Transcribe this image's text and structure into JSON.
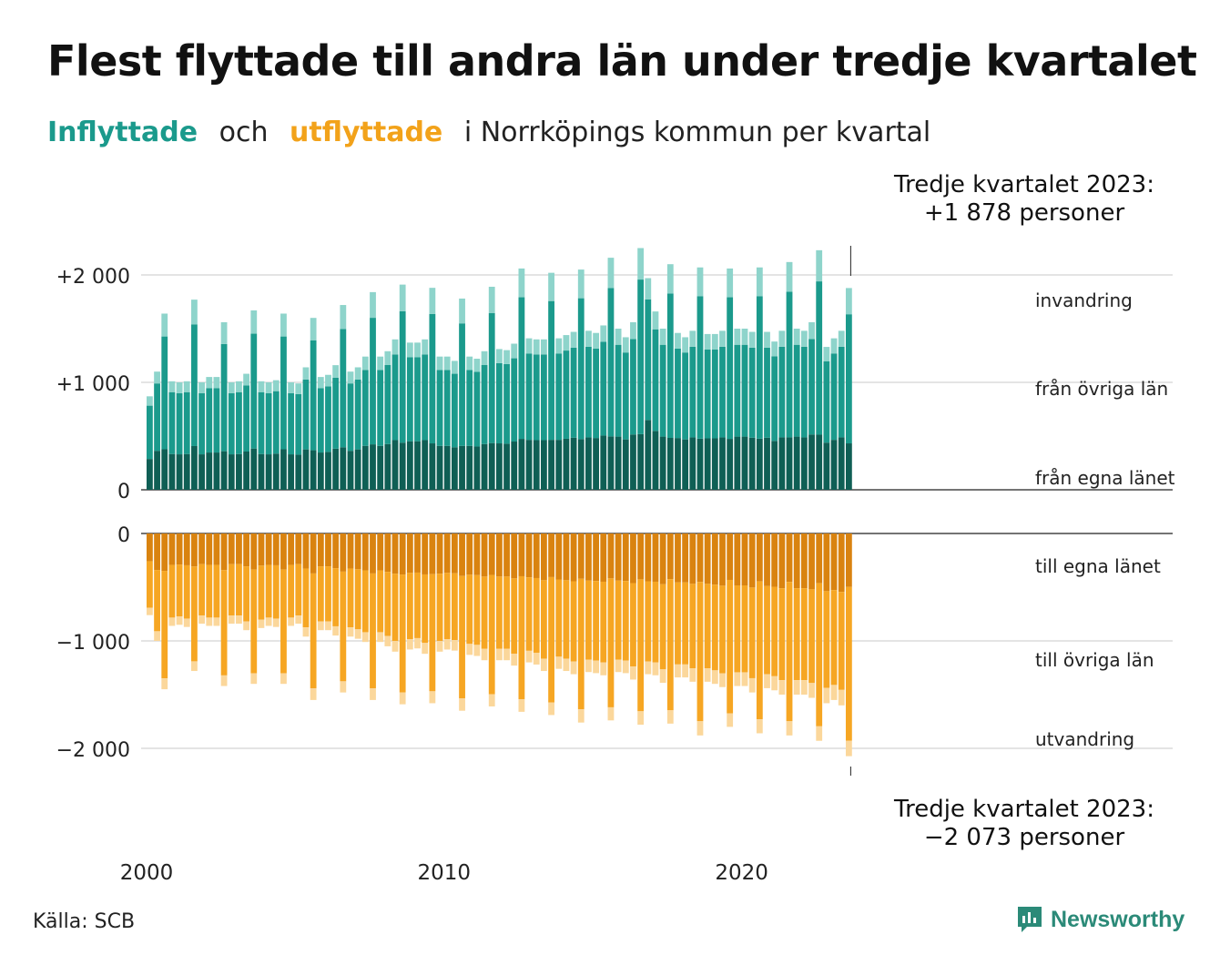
{
  "title": "Flest flyttade till andra län under tredje kvartalet",
  "subtitle": {
    "in_word": "Inflyttade",
    "and": "och",
    "out_word": "utflyttade",
    "rest": "i Norrköpings kommun per kvartal"
  },
  "annotations": {
    "top_line1": "Tredje kvartalet 2023:",
    "top_line2": "+1 878 personer",
    "bottom_line1": "Tredje kvartalet 2023:",
    "bottom_line2": "−2 073 personer"
  },
  "source": "Källa: SCB",
  "logo_text": "Newsworthy",
  "colors": {
    "in_own": "#0f5f55",
    "in_other": "#1b9a8c",
    "in_immigration": "#8ed4cb",
    "out_own": "#d98310",
    "out_other": "#f6a623",
    "out_emigration": "#fbd79b",
    "title_in": "#1b9a8c",
    "title_out": "#f2a21a"
  },
  "chart_data": {
    "type": "bar",
    "x_start": "2000 Q1",
    "x_end": "2023 Q3",
    "x_tick_labels": [
      "2000",
      "2010",
      "2020"
    ],
    "in_ticks": [
      {
        "value": 0,
        "label": "0"
      },
      {
        "value": 1000,
        "label": "+1 000"
      },
      {
        "value": 2000,
        "label": "+2 000"
      }
    ],
    "out_ticks": [
      {
        "value": 0,
        "label": "0"
      },
      {
        "value": -1000,
        "label": "−1 000"
      },
      {
        "value": -2000,
        "label": "−2 000"
      }
    ],
    "in_ylim": [
      0,
      2000
    ],
    "out_ylim": [
      -2000,
      0
    ],
    "in_series_labels": [
      "från egna länet",
      "från övriga län",
      "invandring"
    ],
    "out_series_labels": [
      "till egna länet",
      "till övriga län",
      "utvandring"
    ],
    "inflow_totals": [
      870,
      1100,
      1640,
      1010,
      1000,
      1010,
      1770,
      1000,
      1050,
      1050,
      1560,
      1000,
      1010,
      1080,
      1670,
      1010,
      1000,
      1020,
      1640,
      1000,
      990,
      1140,
      1600,
      1050,
      1070,
      1160,
      1720,
      1100,
      1140,
      1240,
      1840,
      1240,
      1290,
      1400,
      1910,
      1370,
      1370,
      1400,
      1880,
      1240,
      1240,
      1200,
      1780,
      1240,
      1220,
      1290,
      1890,
      1310,
      1300,
      1360,
      2060,
      1410,
      1400,
      1400,
      2020,
      1410,
      1440,
      1470,
      2050,
      1480,
      1460,
      1530,
      2160,
      1500,
      1420,
      1560,
      2250,
      1970,
      1660,
      1500,
      2100,
      1460,
      1420,
      1480,
      2070,
      1450,
      1450,
      1480,
      2060,
      1500,
      1500,
      1470,
      2070,
      1470,
      1380,
      1480,
      2120,
      1500,
      1480,
      1560,
      2230,
      1330,
      1410,
      1480,
      1878
    ],
    "outflow_totals": [
      -760,
      -1000,
      -1450,
      -860,
      -850,
      -870,
      -1280,
      -840,
      -860,
      -860,
      -1420,
      -840,
      -840,
      -900,
      -1400,
      -880,
      -860,
      -870,
      -1400,
      -860,
      -840,
      -960,
      -1550,
      -900,
      -900,
      -950,
      -1480,
      -960,
      -980,
      -1010,
      -1550,
      -1010,
      -1050,
      -1100,
      -1590,
      -1080,
      -1070,
      -1120,
      -1580,
      -1100,
      -1080,
      -1090,
      -1650,
      -1130,
      -1140,
      -1180,
      -1610,
      -1180,
      -1180,
      -1230,
      -1660,
      -1200,
      -1220,
      -1280,
      -1690,
      -1260,
      -1280,
      -1310,
      -1760,
      -1290,
      -1300,
      -1320,
      -1740,
      -1290,
      -1300,
      -1360,
      -1780,
      -1310,
      -1320,
      -1390,
      -1770,
      -1340,
      -1340,
      -1380,
      -1880,
      -1380,
      -1400,
      -1430,
      -1800,
      -1420,
      -1420,
      -1480,
      -1860,
      -1440,
      -1460,
      -1500,
      -1880,
      -1500,
      -1500,
      -1530,
      -1930,
      -1580,
      -1550,
      -1600,
      -2073
    ],
    "last_quarter": {
      "label": "Tredje kvartalet 2023",
      "inflow": 1878,
      "outflow": -2073
    }
  }
}
